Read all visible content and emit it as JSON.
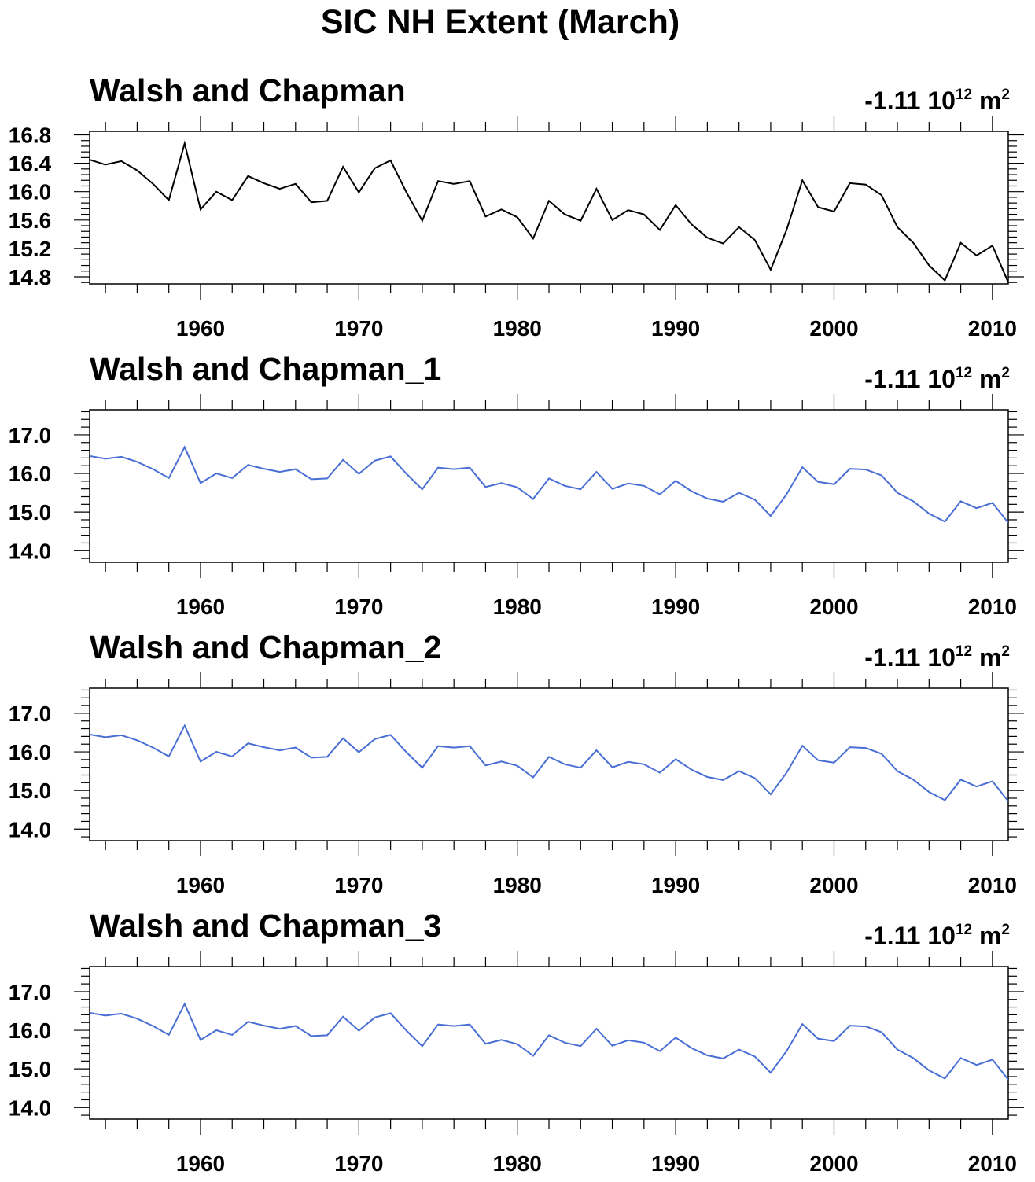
{
  "title": "SIC NH Extent (March)",
  "chart_data": [
    {
      "type": "line",
      "title": "Walsh and Chapman",
      "units": {
        "value": "-1.11",
        "base": "10",
        "exp": "12",
        "unit": "m",
        "unit_exp": "2"
      },
      "xlim": [
        1953,
        2011
      ],
      "ylim": [
        14.7,
        16.85
      ],
      "xticks": [
        1960,
        1970,
        1980,
        1990,
        2000,
        2010
      ],
      "yticks": [
        "16.8",
        "16.4",
        "16.0",
        "15.6",
        "15.2",
        "14.8"
      ],
      "color": "#000000",
      "series": [
        {
          "x": [
            1953,
            1954,
            1955,
            1956,
            1957,
            1958,
            1959,
            1960,
            1961,
            1962,
            1963,
            1964,
            1965,
            1966,
            1967,
            1968,
            1969,
            1970,
            1971,
            1972,
            1973,
            1974,
            1975,
            1976,
            1977,
            1978,
            1979,
            1980,
            1981,
            1982,
            1983,
            1984,
            1985,
            1986,
            1987,
            1988,
            1989,
            1990,
            1991,
            1992,
            1993,
            1994,
            1995,
            1996,
            1997,
            1998,
            1999,
            2000,
            2001,
            2002,
            2003,
            2004,
            2005,
            2006,
            2007,
            2008,
            2009,
            2010,
            2011
          ],
          "values": [
            16.45,
            16.38,
            16.43,
            16.3,
            16.11,
            15.88,
            16.68,
            15.75,
            16.0,
            15.88,
            16.22,
            16.12,
            16.04,
            16.11,
            15.85,
            15.87,
            16.35,
            15.99,
            16.33,
            16.44,
            15.99,
            15.59,
            16.15,
            16.11,
            16.15,
            15.65,
            15.75,
            15.64,
            15.34,
            15.87,
            15.68,
            15.59,
            16.04,
            15.6,
            15.74,
            15.68,
            15.46,
            15.81,
            15.54,
            15.35,
            15.27,
            15.5,
            15.32,
            14.9,
            15.46,
            16.16,
            15.78,
            15.72,
            16.12,
            16.1,
            15.95,
            15.5,
            15.28,
            14.96,
            14.75,
            15.28,
            15.1,
            15.24,
            14.72
          ]
        }
      ]
    },
    {
      "type": "line",
      "title": "Walsh and Chapman_1",
      "units": {
        "value": "-1.11",
        "base": "10",
        "exp": "12",
        "unit": "m",
        "unit_exp": "2"
      },
      "xlim": [
        1953,
        2011
      ],
      "ylim": [
        13.7,
        17.65
      ],
      "xticks": [
        1960,
        1970,
        1980,
        1990,
        2000,
        2010
      ],
      "yticks": [
        "17.0",
        "16.0",
        "15.0",
        "14.0"
      ],
      "color": "#4a6fd4",
      "series": [
        {
          "x": [
            1953,
            1954,
            1955,
            1956,
            1957,
            1958,
            1959,
            1960,
            1961,
            1962,
            1963,
            1964,
            1965,
            1966,
            1967,
            1968,
            1969,
            1970,
            1971,
            1972,
            1973,
            1974,
            1975,
            1976,
            1977,
            1978,
            1979,
            1980,
            1981,
            1982,
            1983,
            1984,
            1985,
            1986,
            1987,
            1988,
            1989,
            1990,
            1991,
            1992,
            1993,
            1994,
            1995,
            1996,
            1997,
            1998,
            1999,
            2000,
            2001,
            2002,
            2003,
            2004,
            2005,
            2006,
            2007,
            2008,
            2009,
            2010,
            2011
          ],
          "values": [
            16.45,
            16.38,
            16.43,
            16.3,
            16.11,
            15.88,
            16.68,
            15.75,
            16.0,
            15.88,
            16.22,
            16.12,
            16.04,
            16.11,
            15.85,
            15.87,
            16.35,
            15.99,
            16.33,
            16.44,
            15.99,
            15.59,
            16.15,
            16.11,
            16.15,
            15.65,
            15.75,
            15.64,
            15.34,
            15.87,
            15.68,
            15.59,
            16.04,
            15.6,
            15.74,
            15.68,
            15.46,
            15.81,
            15.54,
            15.35,
            15.27,
            15.5,
            15.32,
            14.9,
            15.46,
            16.16,
            15.78,
            15.72,
            16.12,
            16.1,
            15.95,
            15.5,
            15.28,
            14.96,
            14.75,
            15.28,
            15.1,
            15.24,
            14.72
          ]
        }
      ]
    },
    {
      "type": "line",
      "title": "Walsh and Chapman_2",
      "units": {
        "value": "-1.11",
        "base": "10",
        "exp": "12",
        "unit": "m",
        "unit_exp": "2"
      },
      "xlim": [
        1953,
        2011
      ],
      "ylim": [
        13.7,
        17.65
      ],
      "xticks": [
        1960,
        1970,
        1980,
        1990,
        2000,
        2010
      ],
      "yticks": [
        "17.0",
        "16.0",
        "15.0",
        "14.0"
      ],
      "color": "#4a6fd4",
      "series": [
        {
          "x": [
            1953,
            1954,
            1955,
            1956,
            1957,
            1958,
            1959,
            1960,
            1961,
            1962,
            1963,
            1964,
            1965,
            1966,
            1967,
            1968,
            1969,
            1970,
            1971,
            1972,
            1973,
            1974,
            1975,
            1976,
            1977,
            1978,
            1979,
            1980,
            1981,
            1982,
            1983,
            1984,
            1985,
            1986,
            1987,
            1988,
            1989,
            1990,
            1991,
            1992,
            1993,
            1994,
            1995,
            1996,
            1997,
            1998,
            1999,
            2000,
            2001,
            2002,
            2003,
            2004,
            2005,
            2006,
            2007,
            2008,
            2009,
            2010,
            2011
          ],
          "values": [
            16.45,
            16.38,
            16.43,
            16.3,
            16.11,
            15.88,
            16.68,
            15.75,
            16.0,
            15.88,
            16.22,
            16.12,
            16.04,
            16.11,
            15.85,
            15.87,
            16.35,
            15.99,
            16.33,
            16.44,
            15.99,
            15.59,
            16.15,
            16.11,
            16.15,
            15.65,
            15.75,
            15.64,
            15.34,
            15.87,
            15.68,
            15.59,
            16.04,
            15.6,
            15.74,
            15.68,
            15.46,
            15.81,
            15.54,
            15.35,
            15.27,
            15.5,
            15.32,
            14.9,
            15.46,
            16.16,
            15.78,
            15.72,
            16.12,
            16.1,
            15.95,
            15.5,
            15.28,
            14.96,
            14.75,
            15.28,
            15.1,
            15.24,
            14.72
          ]
        }
      ]
    },
    {
      "type": "line",
      "title": "Walsh and Chapman_3",
      "units": {
        "value": "-1.11",
        "base": "10",
        "exp": "12",
        "unit": "m",
        "unit_exp": "2"
      },
      "xlim": [
        1953,
        2011
      ],
      "ylim": [
        13.7,
        17.65
      ],
      "xticks": [
        1960,
        1970,
        1980,
        1990,
        2000,
        2010
      ],
      "yticks": [
        "17.0",
        "16.0",
        "15.0",
        "14.0"
      ],
      "color": "#4a6fd4",
      "series": [
        {
          "x": [
            1953,
            1954,
            1955,
            1956,
            1957,
            1958,
            1959,
            1960,
            1961,
            1962,
            1963,
            1964,
            1965,
            1966,
            1967,
            1968,
            1969,
            1970,
            1971,
            1972,
            1973,
            1974,
            1975,
            1976,
            1977,
            1978,
            1979,
            1980,
            1981,
            1982,
            1983,
            1984,
            1985,
            1986,
            1987,
            1988,
            1989,
            1990,
            1991,
            1992,
            1993,
            1994,
            1995,
            1996,
            1997,
            1998,
            1999,
            2000,
            2001,
            2002,
            2003,
            2004,
            2005,
            2006,
            2007,
            2008,
            2009,
            2010,
            2011
          ],
          "values": [
            16.45,
            16.38,
            16.43,
            16.3,
            16.11,
            15.88,
            16.68,
            15.75,
            16.0,
            15.88,
            16.22,
            16.12,
            16.04,
            16.11,
            15.85,
            15.87,
            16.35,
            15.99,
            16.33,
            16.44,
            15.99,
            15.59,
            16.15,
            16.11,
            16.15,
            15.65,
            15.75,
            15.64,
            15.34,
            15.87,
            15.68,
            15.59,
            16.04,
            15.6,
            15.74,
            15.68,
            15.46,
            15.81,
            15.54,
            15.35,
            15.27,
            15.5,
            15.32,
            14.9,
            15.46,
            16.16,
            15.78,
            15.72,
            16.12,
            16.1,
            15.95,
            15.5,
            15.28,
            14.96,
            14.75,
            15.28,
            15.1,
            15.24,
            14.72
          ]
        }
      ]
    }
  ]
}
